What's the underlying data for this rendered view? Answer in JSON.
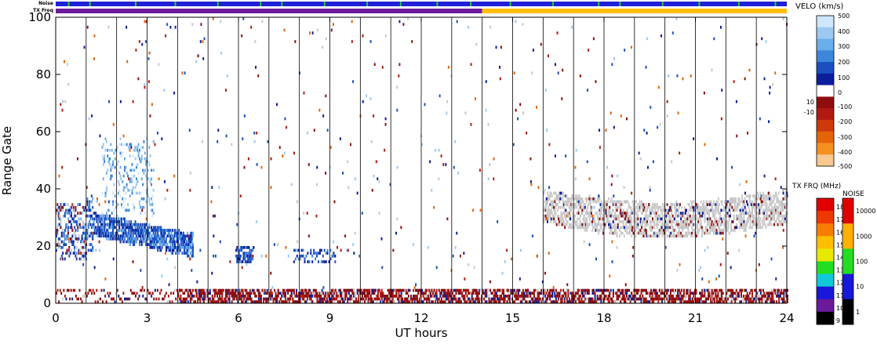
{
  "header": {
    "noise_label": "Noise",
    "txfreq_label": "TX Freq"
  },
  "chart_data": {
    "type": "heatmap",
    "xlabel": "UT hours",
    "ylabel": "Range Gate",
    "xlim": [
      0,
      24
    ],
    "ylim": [
      0,
      100
    ],
    "x_ticks": [
      "0",
      "3",
      "6",
      "9",
      "12",
      "15",
      "18",
      "21",
      "24"
    ],
    "y_ticks": [
      "0",
      "20",
      "40",
      "60",
      "80",
      "100"
    ],
    "hour_gridlines": true,
    "velocity_scale": {
      "title": "VELO (km/s)",
      "ticks": [
        "500",
        "400",
        "300",
        "200",
        "100",
        "10",
        "0",
        "-10",
        "-100",
        "-200",
        "-300",
        "-400",
        "-500"
      ],
      "colors": [
        "#cfe6ff",
        "#9cc9f2",
        "#6aaee9",
        "#3d86da",
        "#1b4fc0",
        "#0b1d9a",
        "#ffffff",
        "#8e0e0e",
        "#b11a10",
        "#cc3a0c",
        "#e46408",
        "#f39020",
        "#f8c890"
      ],
      "ground_scatter_color": "#c8c8c8"
    },
    "txfreq_scale": {
      "title": "TX FRQ (MHz)",
      "ticks": [
        "18",
        "17",
        "16",
        "15",
        "14",
        "13",
        "12",
        "11",
        "10",
        "9"
      ],
      "colors": [
        "#e00000",
        "#ee3800",
        "#f77d00",
        "#ffbe00",
        "#e8e800",
        "#22dd22",
        "#10c8d8",
        "#1818d8",
        "#6a1a9a",
        "#000000"
      ]
    },
    "noise_scale": {
      "title": "NOISE",
      "ticks": [
        "10000",
        "1000",
        "100",
        "10",
        "1"
      ],
      "colors": [
        "#e00000",
        "#ffb000",
        "#22dd22",
        "#1818d8",
        "#000000"
      ]
    },
    "noise_bar": {
      "base_color": "#2020d8",
      "spike_color": "#22cc22",
      "spike_hours": [
        0.4,
        1.1,
        2.6,
        3.9,
        5.3,
        6.7,
        7.4,
        8.8,
        10.2,
        11.3,
        12.5,
        13.6,
        14.9,
        16.3,
        17.8,
        18.5,
        19.9,
        21.1,
        22.4,
        23.6
      ]
    },
    "txfreq_bar": [
      {
        "start": 0,
        "end": 14,
        "color": "#6a1a9a"
      },
      {
        "start": 14,
        "end": 24,
        "color": "#ffbe00"
      }
    ],
    "features": [
      {
        "name": "early-echoes",
        "x": [
          0,
          4.5
        ],
        "y": [
          10,
          62
        ],
        "color": "#1b4fc0"
      },
      {
        "name": "late-ground-scatter",
        "x": [
          16,
          24
        ],
        "y": [
          23,
          48
        ],
        "color": "#c8c8c8"
      },
      {
        "name": "near-range-band",
        "x": [
          0,
          24
        ],
        "y": [
          0,
          9
        ],
        "color": "#8e0e0e"
      }
    ]
  }
}
